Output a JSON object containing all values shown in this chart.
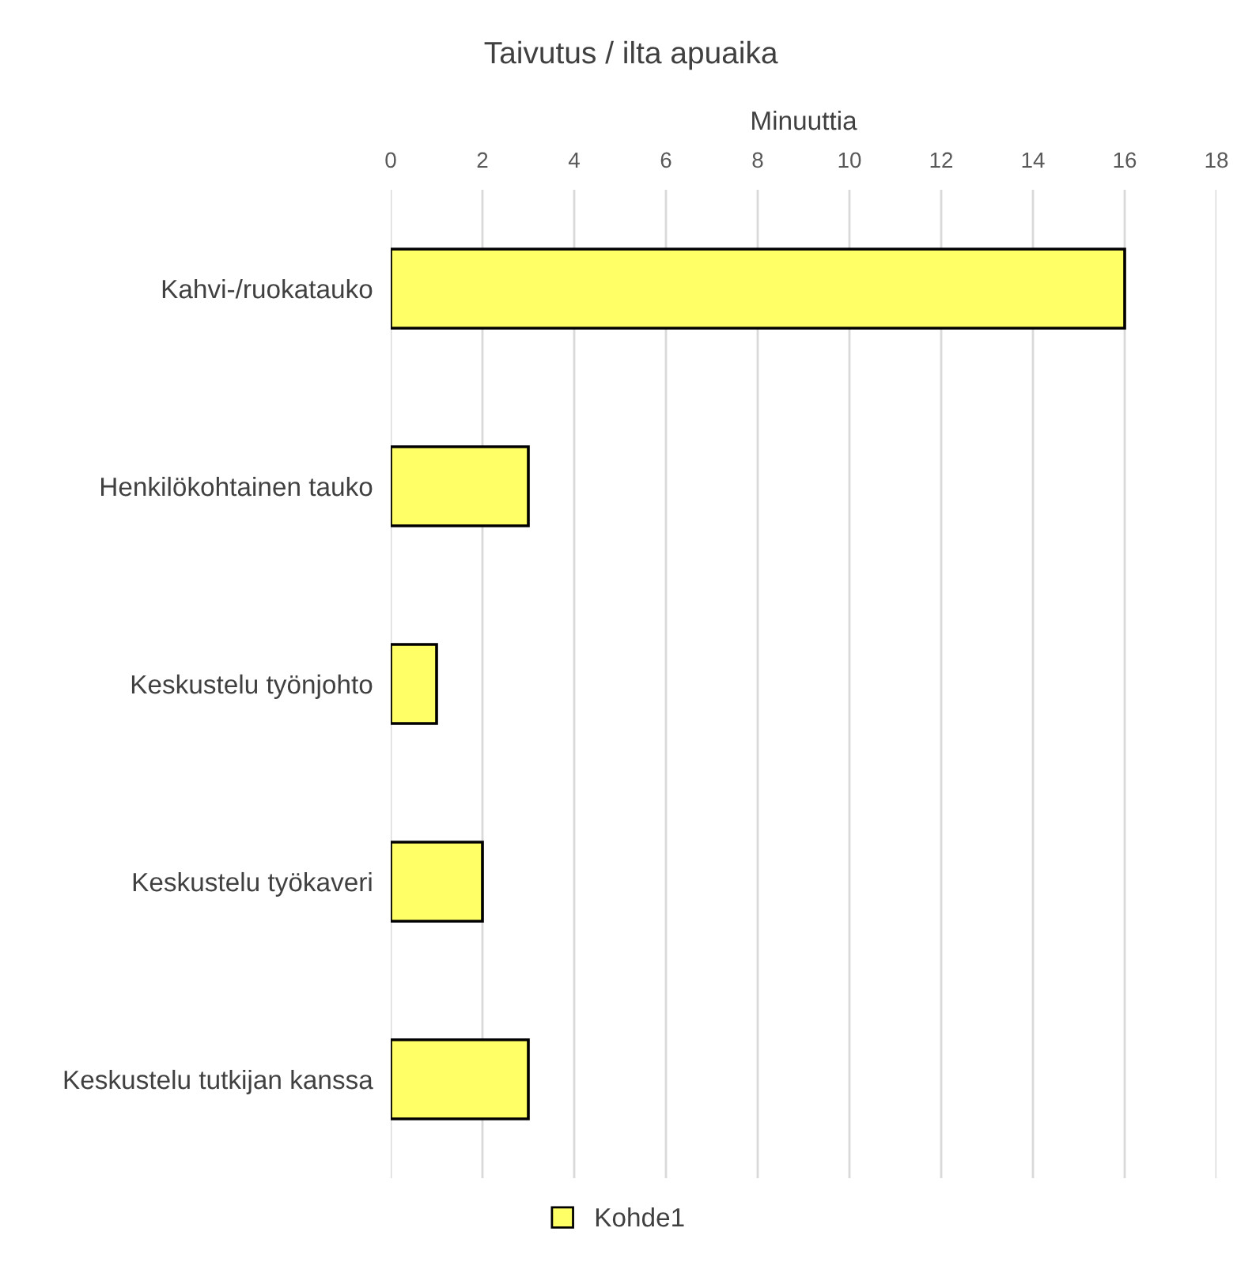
{
  "chart_data": {
    "type": "bar",
    "orientation": "horizontal",
    "title": "Taivutus / ilta apuaika",
    "xlabel": "Minuuttia",
    "categories": [
      "Kahvi-/ruokatauko",
      "Henkilökohtainen tauko",
      "Keskustelu työnjohto",
      "Keskustelu työkaveri",
      "Keskustelu tutkijan kanssa"
    ],
    "series": [
      {
        "name": "Kohde1",
        "color": "#ffff66",
        "values": [
          16,
          3,
          1,
          2,
          3
        ]
      }
    ],
    "xlim": [
      0,
      18
    ],
    "xticks": [
      0,
      2,
      4,
      6,
      8,
      10,
      12,
      14,
      16,
      18
    ],
    "grid": "x",
    "legend": "bottom"
  }
}
